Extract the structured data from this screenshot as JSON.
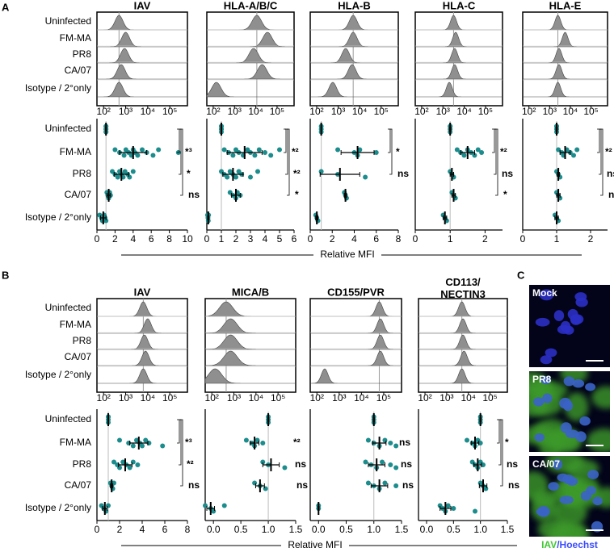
{
  "panels": [
    {
      "label": "A",
      "row_labels": [
        "Uninfected",
        "FM-MA",
        "PR8",
        "CA/07",
        "Isotype / 2°only"
      ],
      "x_label": "Relative MFI",
      "hist_xlim": [
        1.7,
        5.8
      ],
      "hist_xticks": [
        {
          "value": 2,
          "label": "10²"
        },
        {
          "value": 3,
          "label": "10³"
        },
        {
          "value": 4,
          "label": "10⁴"
        },
        {
          "value": 5,
          "label": "10⁵"
        }
      ],
      "columns": [
        {
          "title": "IAV",
          "hist_peaks": [
            2.7,
            3.0,
            2.95,
            2.8,
            2.7
          ],
          "hist_width": 0.18,
          "xlim": [
            0,
            10
          ],
          "xticks": [
            0,
            2,
            4,
            6,
            8,
            10
          ],
          "groups": [
            {
              "mean": 1,
              "sd": 0.05,
              "points": [
                1,
                1,
                1,
                1,
                1,
                1
              ]
            },
            {
              "mean": 4,
              "sd": 1.5,
              "points": [
                2,
                2.5,
                3,
                3.2,
                3.5,
                3.8,
                4,
                4.2,
                4.5,
                5,
                5.5,
                6.2,
                6.8,
                9
              ]
            },
            {
              "mean": 2.7,
              "sd": 0.8,
              "points": [
                1.7,
                2,
                2.3,
                2.5,
                2.7,
                2.9,
                3.1,
                3.4,
                3.6,
                4
              ]
            },
            {
              "mean": 1.3,
              "sd": 0.2,
              "points": [
                1.1,
                1.2,
                1.3,
                1.4,
                1.5
              ]
            },
            {
              "mean": 0.7,
              "sd": 0.3,
              "points": [
                0.3,
                0.5,
                0.6,
                0.8,
                0.9,
                1
              ]
            }
          ],
          "significance": [
            "*³",
            "*",
            "ns"
          ],
          "brackets": true
        },
        {
          "title": "HLA-A/B/C",
          "hist_peaks": [
            4.05,
            4.55,
            3.9,
            4.3,
            2.15
          ],
          "hist_width": 0.22,
          "xlim": [
            0,
            6
          ],
          "xticks": [
            0,
            1,
            2,
            3,
            4,
            5,
            6
          ],
          "groups": [
            {
              "mean": 1,
              "sd": 0.03,
              "points": [
                1,
                1,
                1,
                1,
                1
              ]
            },
            {
              "mean": 2.6,
              "sd": 1.2,
              "points": [
                1.2,
                1.5,
                1.8,
                2,
                2.2,
                2.5,
                2.8,
                3,
                3.3,
                3.6,
                4,
                4.4,
                5
              ]
            },
            {
              "mean": 1.8,
              "sd": 0.7,
              "points": [
                1,
                1.2,
                1.4,
                1.6,
                1.8,
                2,
                2.2,
                2.4,
                3,
                3.5
              ]
            },
            {
              "mean": 2,
              "sd": 0.3,
              "points": [
                1.6,
                1.8,
                2,
                2.1,
                2.3
              ]
            },
            {
              "mean": 0.1,
              "sd": 0.05,
              "points": [
                0.05,
                0.08,
                0.1,
                0.12
              ]
            }
          ],
          "significance": [
            "*²",
            "*²",
            "*"
          ],
          "brackets": true
        },
        {
          "title": "HLA-B",
          "hist_peaks": [
            3.7,
            3.7,
            3.35,
            3.65,
            2.75
          ],
          "hist_width": 0.18,
          "xlim": [
            0,
            8
          ],
          "xticks": [
            0,
            2,
            4,
            6,
            8
          ],
          "groups": [
            {
              "mean": 1,
              "sd": 0.03,
              "points": [
                1,
                1,
                1
              ]
            },
            {
              "mean": 4.3,
              "sd": 1.5,
              "points": [
                2.5,
                4,
                4.3,
                4.5,
                6
              ]
            },
            {
              "mean": 2.7,
              "sd": 1.8,
              "points": [
                1,
                2.5,
                5
              ]
            },
            {
              "mean": 3.2,
              "sd": 0.1,
              "points": [
                3.1,
                3.2,
                3.3
              ]
            },
            {
              "mean": 0.6,
              "sd": 0.1,
              "points": [
                0.5,
                0.6,
                0.7
              ]
            }
          ],
          "significance": [
            "*",
            "ns"
          ],
          "brackets": true
        },
        {
          "title": "HLA-C",
          "hist_peaks": [
            3.5,
            3.6,
            3.55,
            3.55,
            3.3
          ],
          "hist_width": 0.14,
          "xlim": [
            0,
            2.5
          ],
          "xticks": [
            0,
            1,
            2
          ],
          "groups": [
            {
              "mean": 1,
              "sd": 0.02,
              "points": [
                1,
                1,
                1,
                1
              ]
            },
            {
              "mean": 1.5,
              "sd": 0.2,
              "points": [
                1.2,
                1.3,
                1.4,
                1.5,
                1.6,
                1.7,
                1.8,
                1.9
              ]
            },
            {
              "mean": 1.05,
              "sd": 0.05,
              "points": [
                1,
                1.05,
                1.1
              ]
            },
            {
              "mean": 1.1,
              "sd": 0.05,
              "points": [
                1.05,
                1.1,
                1.15
              ]
            },
            {
              "mean": 0.85,
              "sd": 0.05,
              "points": [
                0.8,
                0.85,
                0.9
              ]
            }
          ],
          "significance": [
            "*²",
            "ns",
            "*"
          ],
          "brackets": true
        },
        {
          "title": "HLA-E",
          "hist_peaks": [
            3.4,
            3.75,
            3.45,
            3.45,
            3.4
          ],
          "hist_width": 0.14,
          "xlim": [
            0,
            2.5
          ],
          "xticks": [
            0,
            1,
            2
          ],
          "groups": [
            {
              "mean": 1,
              "sd": 0.02,
              "points": [
                1,
                1,
                1,
                1
              ]
            },
            {
              "mean": 1.25,
              "sd": 0.15,
              "points": [
                1.05,
                1.15,
                1.2,
                1.3,
                1.4,
                1.5,
                1.6
              ]
            },
            {
              "mean": 1.05,
              "sd": 0.03,
              "points": [
                1,
                1.05,
                1.1
              ]
            },
            {
              "mean": 1.05,
              "sd": 0.05,
              "points": [
                1,
                1.05,
                1.1
              ]
            },
            {
              "mean": 1,
              "sd": 0.05,
              "points": [
                0.95,
                1,
                1.05
              ]
            }
          ],
          "significance": [
            "*²",
            "ns",
            "ns"
          ],
          "brackets": true
        }
      ]
    },
    {
      "label": "B",
      "row_labels": [
        "Uninfected",
        "FM-MA",
        "PR8",
        "CA/07",
        "Isotype / 2°only"
      ],
      "x_label": "Relative MFI",
      "hist_xlim": [
        1.7,
        5.8
      ],
      "hist_xticks": [
        {
          "value": 2,
          "label": "10²"
        },
        {
          "value": 3,
          "label": "10³"
        },
        {
          "value": 4,
          "label": "10⁴"
        },
        {
          "value": 5,
          "label": "10⁵"
        }
      ],
      "columns": [
        {
          "title": "IAV",
          "hist_peaks": [
            3.8,
            4.0,
            3.85,
            3.9,
            3.8
          ],
          "hist_width": 0.16,
          "xlim": [
            0,
            8
          ],
          "xticks": [
            0,
            2,
            4,
            6,
            8
          ],
          "groups": [
            {
              "mean": 1,
              "sd": 0.03,
              "points": [
                1,
                1,
                1,
                1
              ]
            },
            {
              "mean": 3.7,
              "sd": 0.8,
              "points": [
                2,
                2.8,
                3.2,
                3.5,
                3.8,
                4,
                4.3,
                4.6,
                5.8
              ]
            },
            {
              "mean": 2.5,
              "sd": 0.6,
              "points": [
                1.5,
                1.8,
                2,
                2.3,
                2.6,
                2.9,
                3.2,
                3.6
              ]
            },
            {
              "mean": 1.3,
              "sd": 0.1,
              "points": [
                1.2,
                1.3,
                1.4,
                1.5
              ]
            },
            {
              "mean": 0.7,
              "sd": 0.2,
              "points": [
                0.4,
                0.6,
                0.8,
                1
              ]
            }
          ],
          "significance": [
            "*³",
            "*²",
            "ns"
          ],
          "brackets": true
        },
        {
          "title": "MICA/B",
          "hist_peaks": [
            2.65,
            2.85,
            2.85,
            2.85,
            2.15
          ],
          "hist_width": 0.3,
          "xlim": [
            -0.15,
            1.5
          ],
          "xticks": [
            {
              "value": 0,
              "label": "0.0"
            },
            0.5,
            {
              "value": 1,
              "label": "1.0"
            },
            1.5
          ],
          "groups": [
            {
              "mean": 1,
              "sd": 0.01,
              "points": [
                1,
                1,
                1
              ]
            },
            {
              "mean": 0.75,
              "sd": 0.08,
              "points": [
                0.6,
                0.7,
                0.75,
                0.8,
                0.9
              ]
            },
            {
              "mean": 1.05,
              "sd": 0.15,
              "points": [
                0.9,
                1,
                1.3
              ]
            },
            {
              "mean": 0.85,
              "sd": 0.08,
              "points": [
                0.75,
                0.85,
                0.95
              ]
            },
            {
              "mean": -0.05,
              "sd": 0.07,
              "points": [
                -0.15,
                -0.05,
                0,
                0.2
              ]
            }
          ],
          "significance": [
            "*²",
            "ns",
            "ns"
          ],
          "brackets": false
        },
        {
          "title": "CD155/PVR",
          "hist_peaks": [
            4.8,
            4.85,
            4.85,
            4.85,
            2.35
          ],
          "hist_width": 0.15,
          "xlim": [
            -0.15,
            1.5
          ],
          "xticks": [
            {
              "value": 0,
              "label": "0.0"
            },
            0.5,
            {
              "value": 1,
              "label": "1.0"
            },
            1.5
          ],
          "groups": [
            {
              "mean": 1,
              "sd": 0.01,
              "points": [
                1,
                1,
                1
              ]
            },
            {
              "mean": 1.1,
              "sd": 0.12,
              "points": [
                0.9,
                1,
                1.1,
                1.2,
                1.3,
                1.4
              ]
            },
            {
              "mean": 1.05,
              "sd": 0.15,
              "points": [
                0.85,
                0.95,
                1.05,
                1.15,
                1.3,
                1.4
              ]
            },
            {
              "mean": 1.1,
              "sd": 0.15,
              "points": [
                0.9,
                1,
                1.1,
                1.2,
                1.4
              ]
            },
            {
              "mean": 0,
              "sd": 0.01,
              "points": [
                0,
                0
              ]
            }
          ],
          "significance": [
            "ns",
            "ns",
            "ns"
          ],
          "brackets": false
        },
        {
          "title": "CD113/\nNECTIN3",
          "hist_peaks": [
            3.7,
            3.75,
            3.75,
            3.8,
            3.7
          ],
          "hist_width": 0.15,
          "xlim": [
            -0.15,
            1.5
          ],
          "xticks": [
            {
              "value": 0,
              "label": "0.0"
            },
            0.5,
            {
              "value": 1,
              "label": "1.0"
            },
            1.5
          ],
          "groups": [
            {
              "mean": 1,
              "sd": 0.01,
              "points": [
                1,
                1,
                1
              ]
            },
            {
              "mean": 0.9,
              "sd": 0.07,
              "points": [
                0.75,
                0.85,
                0.9,
                0.95,
                1
              ]
            },
            {
              "mean": 0.95,
              "sd": 0.07,
              "points": [
                0.85,
                0.9,
                0.95,
                1,
                1.05
              ]
            },
            {
              "mean": 1.05,
              "sd": 0.07,
              "points": [
                1,
                1.05,
                1.1
              ]
            },
            {
              "mean": 0.35,
              "sd": 0.1,
              "points": [
                0.25,
                0.3,
                0.35,
                0.4,
                0.5,
                0.9
              ]
            }
          ],
          "significance": [
            "*",
            "ns",
            "ns"
          ],
          "brackets": true
        }
      ]
    }
  ],
  "panel_c": {
    "label": "C",
    "images": [
      "Mock",
      "PR8",
      "CA/07"
    ],
    "legend": [
      "IAV",
      "/Hoechst"
    ]
  }
}
